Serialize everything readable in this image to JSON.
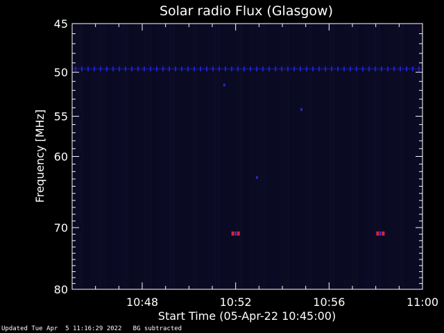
{
  "chart_data": {
    "type": "heatmap",
    "title": "Solar radio Flux (Glasgow)",
    "xlabel": "Start Time (05-Apr-22 10:45:00)",
    "ylabel": "Frequency [MHz]",
    "x_range_minutes": [
      0,
      15
    ],
    "y_range_mhz": [
      45,
      80
    ],
    "y_scale": "log",
    "x_ticks": [
      {
        "minute": 3,
        "label": "10:48"
      },
      {
        "minute": 7,
        "label": "10:52"
      },
      {
        "minute": 11,
        "label": "10:56"
      },
      {
        "minute": 15,
        "label": "11:00"
      }
    ],
    "y_ticks": [
      {
        "value": 45,
        "label": "45"
      },
      {
        "value": 50,
        "label": "50"
      },
      {
        "value": 55,
        "label": "55"
      },
      {
        "value": 60,
        "label": "60"
      },
      {
        "value": 70,
        "label": "70"
      },
      {
        "value": 80,
        "label": "80"
      }
    ],
    "background_color": "#0a0a24",
    "interference_band_mhz": 49.6,
    "interference_color": "#2020c8",
    "hot_spots": [
      {
        "minute": 7.0,
        "freq": 70.9,
        "color": "#e02040"
      },
      {
        "minute": 13.2,
        "freq": 70.9,
        "color": "#e02040"
      }
    ],
    "faint_spots": [
      {
        "minute": 6.5,
        "freq": 51.4
      },
      {
        "minute": 9.8,
        "freq": 54.2
      },
      {
        "minute": 7.9,
        "freq": 62.8
      }
    ]
  },
  "footer": {
    "text": "Updated Tue Apr  5 11:16:29 2022   BG subtracted"
  }
}
